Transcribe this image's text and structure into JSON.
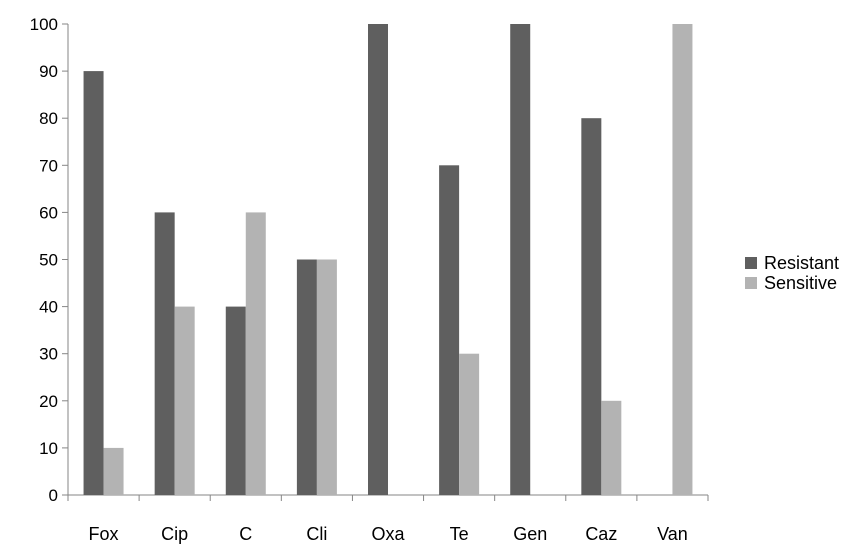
{
  "chart_data": {
    "type": "bar",
    "title": "",
    "xlabel": "",
    "ylabel": "",
    "categories": [
      "Fox",
      "Cip",
      "C",
      "Cli",
      "Oxa",
      "Te",
      "Gen",
      "Caz",
      "Van"
    ],
    "series": [
      {
        "name": "Resistant",
        "color": "#5f5f5f",
        "values": [
          90,
          60,
          40,
          50,
          100,
          70,
          100,
          80,
          0
        ]
      },
      {
        "name": "Sensitive",
        "color": "#b3b3b3",
        "values": [
          10,
          40,
          60,
          50,
          0,
          30,
          0,
          20,
          100
        ]
      }
    ],
    "ylim": [
      0,
      100
    ],
    "yticks": [
      0,
      10,
      20,
      30,
      40,
      50,
      60,
      70,
      80,
      90,
      100
    ],
    "grid": false,
    "legend_position": "right"
  }
}
